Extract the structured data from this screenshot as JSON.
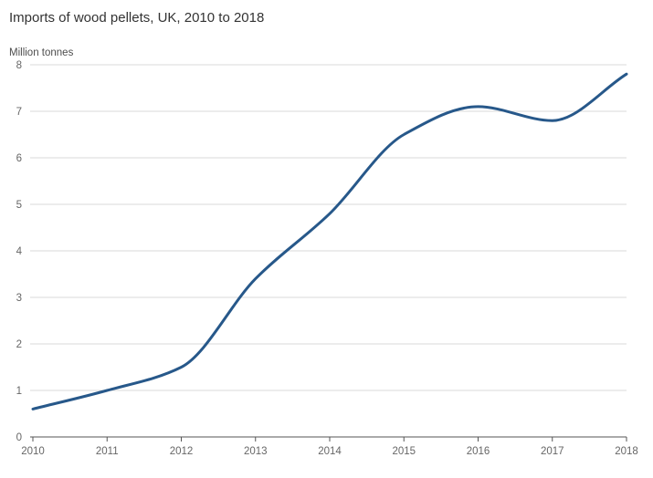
{
  "chart_data": {
    "type": "line",
    "title": "Imports of wood pellets, UK, 2010 to 2018",
    "ylabel": "Million tonnes",
    "xlabel": "",
    "x": [
      "2010",
      "2011",
      "2012",
      "2013",
      "2014",
      "2015",
      "2016",
      "2017",
      "2018"
    ],
    "series": [
      {
        "values": [
          0.6,
          1.0,
          1.5,
          3.4,
          4.8,
          6.5,
          7.1,
          6.8,
          7.8
        ]
      }
    ],
    "ylim": [
      0,
      8
    ],
    "yticks": [
      "0",
      "1",
      "2",
      "3",
      "4",
      "5",
      "6",
      "7",
      "8"
    ],
    "grid": true,
    "legend": "none",
    "line_color": "#27588a"
  }
}
